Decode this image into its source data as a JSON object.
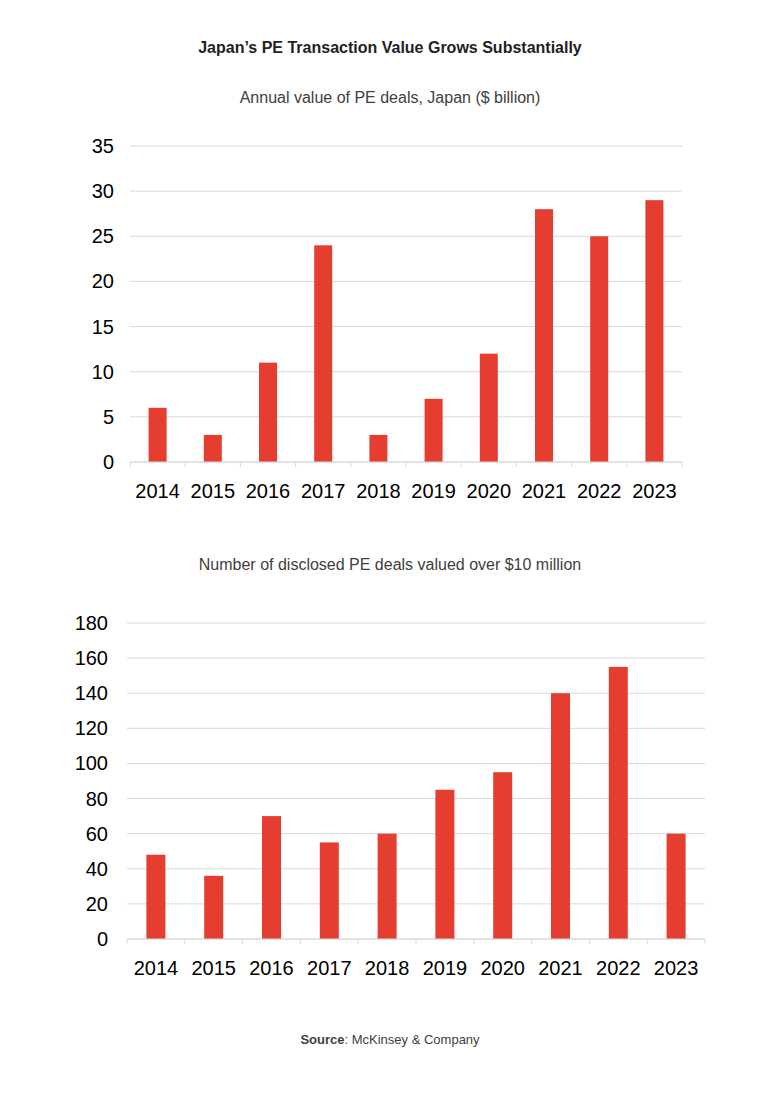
{
  "title": "Japan’s PE Transaction Value Grows Substantially",
  "footer": {
    "label": "Source",
    "text": ": McKinsey & Company"
  },
  "chart_data": [
    {
      "type": "bar",
      "title": "Annual value of PE deals, Japan ($ billion)",
      "categories": [
        "2014",
        "2015",
        "2016",
        "2017",
        "2018",
        "2019",
        "2020",
        "2021",
        "2022",
        "2023"
      ],
      "values": [
        6,
        3,
        11,
        24,
        3,
        7,
        12,
        28,
        25,
        29
      ],
      "color": "#e53e30",
      "ylim": [
        0,
        35
      ],
      "yticks": [
        0,
        5,
        10,
        15,
        20,
        25,
        30,
        35
      ],
      "grid": true
    },
    {
      "type": "bar",
      "title": "Number of disclosed PE deals valued over $10 million",
      "categories": [
        "2014",
        "2015",
        "2016",
        "2017",
        "2018",
        "2019",
        "2020",
        "2021",
        "2022",
        "2023"
      ],
      "values": [
        48,
        36,
        70,
        55,
        60,
        85,
        95,
        140,
        155,
        60
      ],
      "color": "#e53e30",
      "ylim": [
        0,
        180
      ],
      "yticks": [
        0,
        20,
        40,
        60,
        80,
        100,
        120,
        140,
        160,
        180
      ],
      "grid": true
    }
  ]
}
